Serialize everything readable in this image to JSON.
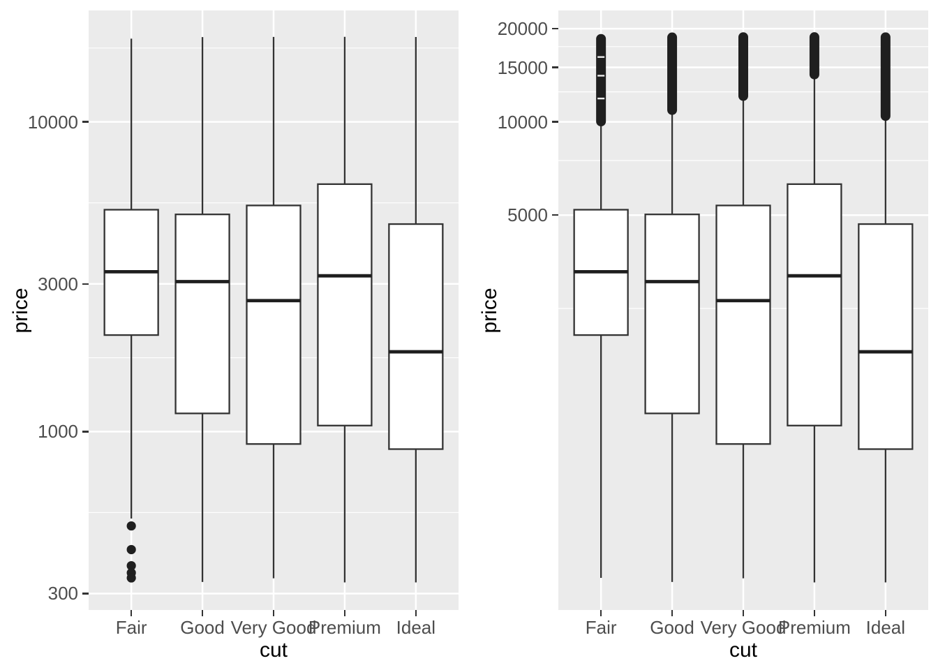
{
  "colors": {
    "panel_background": "#EBEBEB",
    "grid": "#FFFFFF",
    "box_stroke": "#333333",
    "box_fill": "#FFFFFF",
    "median_stroke": "#1E1E1E",
    "outlier_fill": "#1F1F1F",
    "tick_label": "#4D4D4D",
    "axis_title": "#000000",
    "tick_mark": "#333333"
  },
  "chart_data": [
    {
      "type": "boxplot",
      "title": "",
      "xlabel": "cut",
      "ylabel": "price",
      "y_scale": "log10",
      "grid": true,
      "legend": false,
      "ylim": [
        266,
        22900
      ],
      "ylim_log10": [
        2.4241,
        4.3598
      ],
      "categories": [
        "Fair",
        "Good",
        "Very Good",
        "Premium",
        "Ideal"
      ],
      "y_ticks": [
        {
          "value": 300,
          "label": "300"
        },
        {
          "value": 1000,
          "label": "1000"
        },
        {
          "value": 3000,
          "label": "3000"
        },
        {
          "value": 10000,
          "label": "10000"
        }
      ],
      "y_minor": [
        547.7,
        1732.1,
        5477.2,
        17320.5
      ],
      "series": [
        {
          "category": "Fair",
          "whisker_low": 524,
          "q1": 2050,
          "median": 3282,
          "q3": 5205.5,
          "whisker_high": 18574,
          "outliers_low": [
            496,
            416,
            369,
            350,
            337
          ],
          "outlier_band": null
        },
        {
          "category": "Good",
          "whisker_low": 327,
          "q1": 1145,
          "median": 3050.5,
          "q3": 5028,
          "whisker_high": 18788,
          "outliers_low": [],
          "outlier_band": null
        },
        {
          "category": "Very Good",
          "whisker_low": 336,
          "q1": 912,
          "median": 2648,
          "q3": 5372.75,
          "whisker_high": 18818,
          "outliers_low": [],
          "outlier_band": null
        },
        {
          "category": "Premium",
          "whisker_low": 326,
          "q1": 1046,
          "median": 3185,
          "q3": 6296,
          "whisker_high": 18823,
          "outliers_low": [],
          "outlier_band": null
        },
        {
          "category": "Ideal",
          "whisker_low": 326,
          "q1": 878,
          "median": 1810,
          "q3": 4678.5,
          "whisker_high": 18806,
          "outliers_low": [],
          "outlier_band": null
        }
      ]
    },
    {
      "type": "boxplot",
      "title": "",
      "xlabel": "cut",
      "ylabel": "price",
      "y_scale": "log10-transformed coordinates with linear breaks",
      "grid": true,
      "legend": false,
      "ylim": [
        266,
        22900
      ],
      "ylim_log10": [
        2.4241,
        4.3598
      ],
      "categories": [
        "Fair",
        "Good",
        "Very Good",
        "Premium",
        "Ideal"
      ],
      "y_ticks": [
        {
          "value": 5000,
          "label": "5000"
        },
        {
          "value": 10000,
          "label": "10000"
        },
        {
          "value": 15000,
          "label": "15000"
        },
        {
          "value": 20000,
          "label": "20000"
        }
      ],
      "y_minor": [
        2500,
        7500,
        12500,
        17500
      ],
      "series": [
        {
          "category": "Fair",
          "whisker_low": 337,
          "q1": 2050,
          "median": 3282,
          "q3": 5205.5,
          "whisker_high": 9899,
          "outliers_low": [],
          "outlier_band": [
            10012,
            18574
          ],
          "band_gaps": [
            16200,
            14100,
            11900
          ]
        },
        {
          "category": "Good",
          "whisker_low": 327,
          "q1": 1145,
          "median": 3050.5,
          "q3": 5028,
          "whisker_high": 10800,
          "outliers_low": [],
          "outlier_band": [
            10900,
            18788
          ]
        },
        {
          "category": "Very Good",
          "whisker_low": 336,
          "q1": 912,
          "median": 2648,
          "q3": 5372.75,
          "whisker_high": 12030,
          "outliers_low": [],
          "outlier_band": [
            12100,
            18818
          ]
        },
        {
          "category": "Premium",
          "whisker_low": 326,
          "q1": 1046,
          "median": 3185,
          "q3": 6296,
          "whisker_high": 14140,
          "outliers_low": [],
          "outlier_band": [
            14200,
            18823
          ]
        },
        {
          "category": "Ideal",
          "whisker_low": 326,
          "q1": 878,
          "median": 1810,
          "q3": 4678.5,
          "whisker_high": 10370,
          "outliers_low": [],
          "outlier_band": [
            10430,
            18806
          ]
        }
      ]
    }
  ]
}
